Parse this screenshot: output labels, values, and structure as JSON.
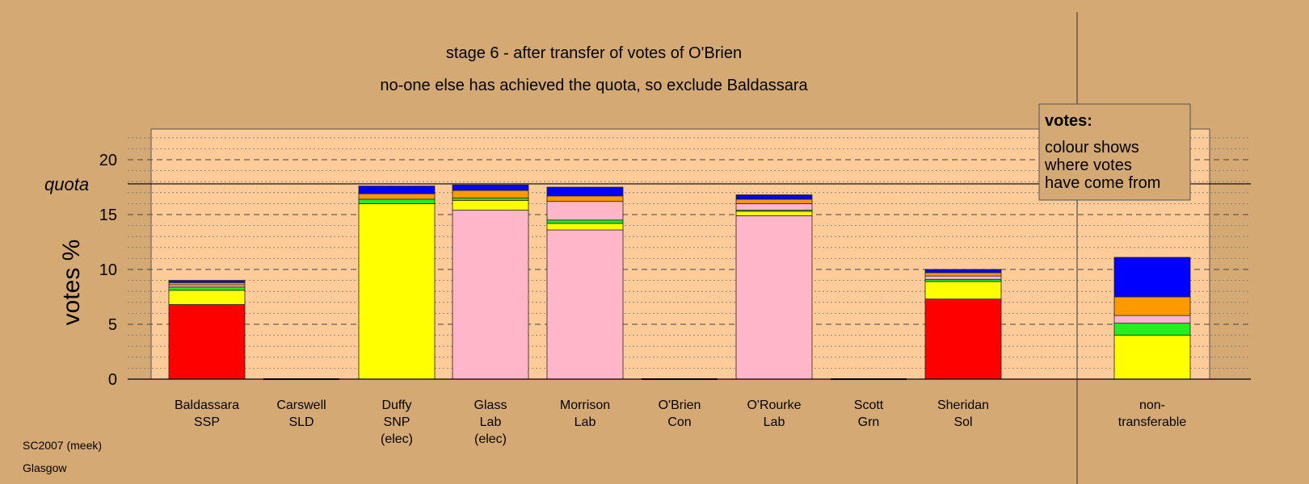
{
  "chart_data": {
    "type": "bar",
    "stacked": true,
    "title": "stage 6 - after transfer of votes of O'Brien",
    "subtitle": "no-one else has achieved the quota, so exclude Baldassara",
    "ylabel": "votes %",
    "ylim": [
      0,
      22.5
    ],
    "yticks": [
      0,
      5,
      10,
      15,
      20
    ],
    "quota": 17.8,
    "quota_label": "quota",
    "grid": true,
    "legend_position": "top-right",
    "categories": [
      [
        "Baldassara",
        "SSP"
      ],
      [
        "Carswell",
        "SLD"
      ],
      [
        "Duffy",
        "SNP",
        "(elec)"
      ],
      [
        "Glass",
        "Lab",
        "(elec)"
      ],
      [
        "Morrison",
        "Lab"
      ],
      [
        "O'Brien",
        "Con"
      ],
      [
        "O'Rourke",
        "Lab"
      ],
      [
        "Scott",
        "Grn"
      ],
      [
        "Sheridan",
        "Sol"
      ],
      [
        "non-",
        "transferable"
      ]
    ],
    "series": [
      {
        "color": "#FF0000",
        "values": [
          6.8,
          0,
          0,
          0,
          0,
          0,
          0,
          0,
          7.3,
          0
        ]
      },
      {
        "color": "#FFB6C8",
        "values": [
          0,
          0,
          0,
          15.4,
          13.6,
          0,
          14.9,
          0,
          0,
          0
        ]
      },
      {
        "color": "#FFFF00",
        "values": [
          1.3,
          0,
          16.0,
          0.9,
          0.6,
          0,
          0.4,
          0,
          1.6,
          4.0
        ]
      },
      {
        "color": "#22EE22",
        "values": [
          0.3,
          0,
          0.4,
          0.2,
          0.3,
          0,
          0.1,
          0,
          0.2,
          1.1
        ]
      },
      {
        "color": "#FFB6C8",
        "values": [
          0.2,
          0,
          0,
          0,
          1.7,
          0,
          0.6,
          0,
          0.3,
          0.7
        ]
      },
      {
        "color": "#FF9900",
        "values": [
          0.2,
          0,
          0.5,
          0.7,
          0.5,
          0,
          0.4,
          0,
          0.3,
          1.7
        ]
      },
      {
        "color": "#0000FF",
        "values": [
          0.2,
          0,
          0.7,
          0.5,
          0.8,
          0,
          0.4,
          0,
          0.3,
          3.6
        ]
      }
    ]
  },
  "legend": {
    "title": "votes:",
    "lines": [
      "colour shows",
      "where votes",
      "have come from"
    ]
  },
  "footer": {
    "line1": "SC2007 (meek)",
    "line2": "Glasgow"
  }
}
